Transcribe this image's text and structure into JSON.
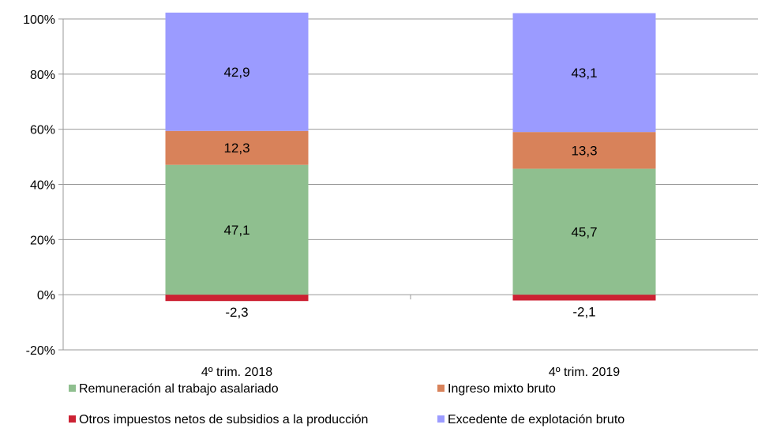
{
  "chart_data": {
    "type": "bar",
    "stacked": true,
    "percent_axis": true,
    "categories": [
      "4º trim. 2018",
      "4º trim. 2019"
    ],
    "series": [
      {
        "name": "Remuneración al trabajo asalariado",
        "values": [
          47.1,
          45.7
        ],
        "color": "#8fbf8f"
      },
      {
        "name": "Ingreso mixto bruto",
        "values": [
          12.3,
          13.3
        ],
        "color": "#d8825a"
      },
      {
        "name": "Otros impuestos netos de subsidios a la producción",
        "values": [
          -2.3,
          -2.1
        ],
        "color": "#cc2233"
      },
      {
        "name": "Excedente de explotación bruto",
        "values": [
          42.9,
          43.1
        ],
        "color": "#9b9bff"
      }
    ],
    "data_labels": [
      [
        "47,1",
        "45,7"
      ],
      [
        "12,3",
        "13,3"
      ],
      [
        "-2,3",
        "-2,1"
      ],
      [
        "42,9",
        "43,1"
      ]
    ],
    "ylim": [
      -20,
      100
    ],
    "yticks": [
      -20,
      0,
      20,
      40,
      60,
      80,
      100
    ],
    "ytick_labels": [
      "-20%",
      "0%",
      "20%",
      "40%",
      "60%",
      "80%",
      "100%"
    ],
    "grid": true,
    "legend_position": "bottom",
    "title": "",
    "xlabel": "",
    "ylabel": ""
  }
}
